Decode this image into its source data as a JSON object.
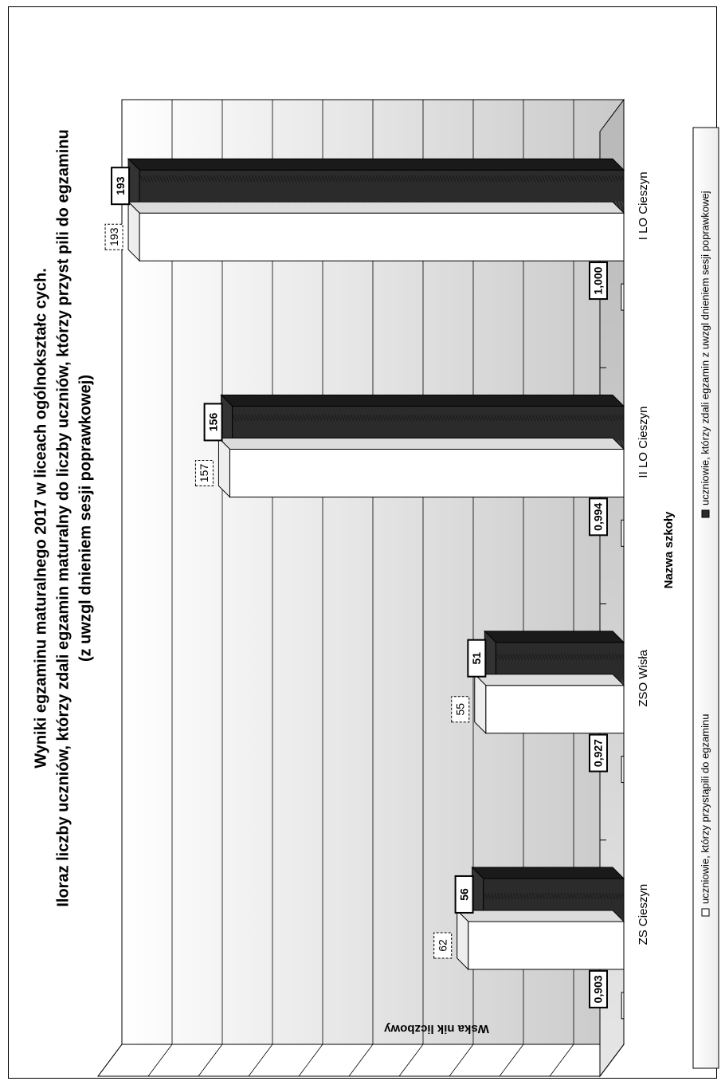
{
  "chart_data": {
    "type": "bar",
    "title_lines": [
      "Wyniki egzaminu maturalnego 2017 w  liceach ogólnokształc cych.",
      "Iloraz liczby uczniów, którzy zdali egzamin maturalny do liczby uczniów, którzy przyst  pili do egzaminu",
      "(z uwzgl  dnieniem sesji poprawkowej)"
    ],
    "xlabel": "Nazwa szkoły",
    "ylabel": "Wska  nik liczbowy",
    "categories": [
      "I LO Cieszyn",
      "II LO Cieszyn",
      "ZSO Wisła",
      "ZS Cieszyn"
    ],
    "ylim": [
      0,
      200
    ],
    "yticks": [
      0,
      20,
      40,
      60,
      80,
      100,
      120,
      140,
      160,
      180,
      200
    ],
    "series": [
      {
        "name": "uczniowie, którzy przystąpili do egzaminu",
        "values": [
          193,
          157,
          55,
          62
        ],
        "labels": [
          "193",
          "157",
          "55",
          "62"
        ],
        "color": "#ffffff"
      },
      {
        "name": "uczniowie, którzy zdali egzamin z uwzgl  dnieniem sesji poprawkowej",
        "values": [
          193,
          156,
          51,
          56
        ],
        "labels": [
          "193",
          "156",
          "51",
          "56"
        ],
        "color": "#2a2a2a"
      },
      {
        "name": "",
        "values": [
          1.0,
          0.994,
          0.927,
          0.903
        ],
        "labels": [
          "1,000",
          "0,994",
          "0,927",
          "0,903"
        ],
        "color": "#ffffff"
      }
    ],
    "grid": true,
    "legend_position": "bottom",
    "orientation": "rotated-90-clockwise"
  }
}
